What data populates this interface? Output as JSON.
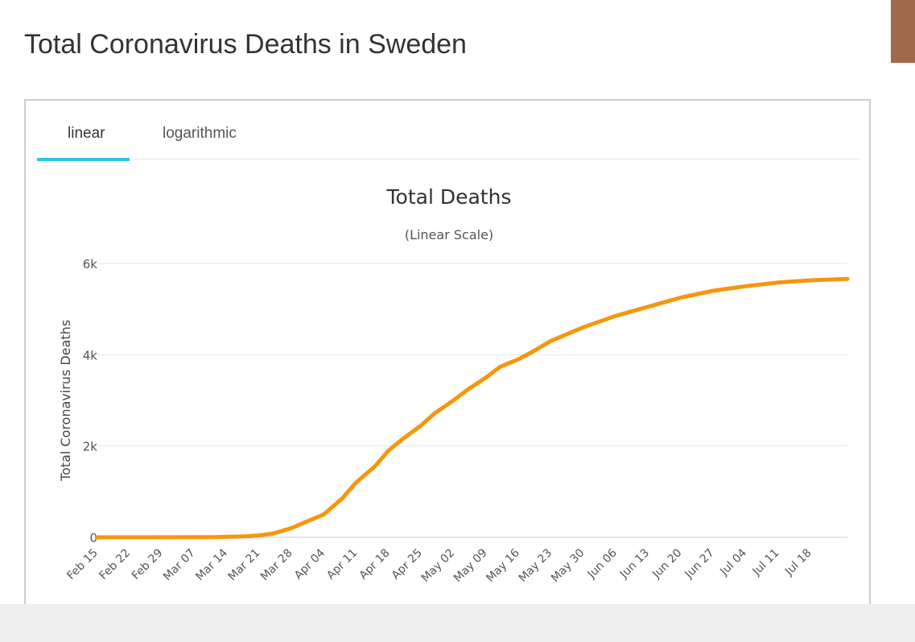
{
  "page": {
    "title": "Total Coronavirus Deaths in Sweden"
  },
  "tabs": [
    {
      "label": "linear",
      "active": true
    },
    {
      "label": "logarithmic",
      "active": false
    }
  ],
  "colors": {
    "line": "#f7960d",
    "tab_active": "#2ec4ea",
    "grid": "#e6e6e6",
    "corner_accent": "#a0694a"
  },
  "chart_data": {
    "type": "line",
    "title": "Total Deaths",
    "subtitle": "(Linear Scale)",
    "ylabel": "Total Coronavirus Deaths",
    "xlabel": "",
    "ylim": [
      0,
      6000
    ],
    "yticks": [
      0,
      2000,
      4000,
      6000
    ],
    "ytick_labels": [
      "0",
      "2k",
      "4k",
      "6k"
    ],
    "grid": true,
    "legend": "none",
    "x_start": "2020-02-15",
    "x_end": "2020-07-26",
    "xtick_labels": [
      "Feb 15",
      "Feb 22",
      "Feb 29",
      "Mar 07",
      "Mar 14",
      "Mar 21",
      "Mar 28",
      "Apr 04",
      "Apr 11",
      "Apr 18",
      "Apr 25",
      "May 02",
      "May 09",
      "May 16",
      "May 23",
      "May 30",
      "Jun 06",
      "Jun 13",
      "Jun 20",
      "Jun 27",
      "Jul 04",
      "Jul 11",
      "Jul 18"
    ],
    "series": [
      {
        "x": [
          "2020-02-15",
          "2020-03-11",
          "2020-03-14",
          "2020-03-18",
          "2020-03-21",
          "2020-03-24",
          "2020-03-28",
          "2020-03-31",
          "2020-04-04",
          "2020-04-08",
          "2020-04-11",
          "2020-04-15",
          "2020-04-18",
          "2020-04-21",
          "2020-04-25",
          "2020-04-28",
          "2020-05-02",
          "2020-05-05",
          "2020-05-09",
          "2020-05-12",
          "2020-05-16",
          "2020-05-19",
          "2020-05-23",
          "2020-05-30",
          "2020-06-06",
          "2020-06-13",
          "2020-06-20",
          "2020-06-27",
          "2020-07-04",
          "2020-07-11",
          "2020-07-18",
          "2020-07-26"
        ],
        "values": [
          0,
          1,
          10,
          20,
          40,
          80,
          200,
          330,
          500,
          850,
          1200,
          1550,
          1900,
          2150,
          2450,
          2720,
          3000,
          3230,
          3500,
          3730,
          3900,
          4060,
          4300,
          4600,
          4850,
          5050,
          5250,
          5400,
          5500,
          5580,
          5630,
          5660
        ]
      }
    ]
  }
}
